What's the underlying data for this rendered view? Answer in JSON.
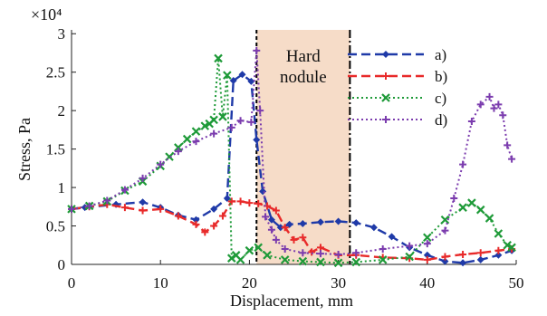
{
  "chart_data": {
    "type": "line",
    "xlabel": "Displacement, mm",
    "ylabel": "Stress, Pa",
    "y_multiplier": "×10⁴",
    "xlim": [
      0,
      50
    ],
    "ylim": [
      0,
      3.05
    ],
    "xticks": [
      "0",
      "10",
      "20",
      "30",
      "40",
      "50"
    ],
    "yticks": [
      "0",
      "0.5",
      "1",
      "1.5",
      "2",
      "2.5",
      "3"
    ],
    "xtick_values": [
      0,
      10,
      20,
      30,
      40,
      50
    ],
    "ytick_values": [
      0,
      0.5,
      1,
      1.5,
      2,
      2.5,
      3
    ],
    "grid": false,
    "legend_position": "top-right",
    "region": {
      "label_lines": [
        "Hard",
        "nodule"
      ],
      "x_start": 20.8,
      "x_end": 31.3,
      "color": "#f6dcc8"
    },
    "series": [
      {
        "name": "a)",
        "color": "#1f3aa8",
        "marker": "diamond",
        "dash": "10,5",
        "x": [
          0,
          1.5,
          5,
          8,
          10,
          12,
          14,
          16,
          17.5,
          18.2,
          19.2,
          20.2,
          20.8,
          21.5,
          22.5,
          23.5,
          24.5,
          26,
          28,
          30,
          32,
          34,
          36,
          38,
          40,
          42,
          44,
          46,
          48,
          49.5
        ],
        "y": [
          0.72,
          0.74,
          0.78,
          0.81,
          0.74,
          0.64,
          0.58,
          0.72,
          0.86,
          2.39,
          2.47,
          2.38,
          1.62,
          0.95,
          0.58,
          0.48,
          0.52,
          0.53,
          0.55,
          0.56,
          0.54,
          0.48,
          0.36,
          0.22,
          0.12,
          0.04,
          0.02,
          0.06,
          0.12,
          0.18
        ]
      },
      {
        "name": "b)",
        "color": "#e82a2a",
        "marker": "plus",
        "dash": "10,5",
        "x": [
          0,
          2,
          4,
          6,
          8,
          10,
          12,
          14,
          15,
          16,
          17,
          18,
          19,
          20,
          21,
          22,
          23,
          24,
          25,
          26,
          27,
          28,
          30,
          32,
          35,
          38,
          40,
          42,
          44,
          46,
          48,
          49.5
        ],
        "y": [
          0.72,
          0.75,
          0.78,
          0.74,
          0.7,
          0.72,
          0.63,
          0.52,
          0.42,
          0.5,
          0.63,
          0.82,
          0.82,
          0.8,
          0.79,
          0.76,
          0.7,
          0.48,
          0.32,
          0.35,
          0.16,
          0.22,
          0.12,
          0.12,
          0.09,
          0.08,
          0.06,
          0.1,
          0.13,
          0.15,
          0.18,
          0.2
        ]
      },
      {
        "name": "c)",
        "color": "#1e9a38",
        "marker": "x",
        "dash": "2,3",
        "x": [
          0,
          2,
          4,
          6,
          8,
          10,
          11,
          12,
          13,
          14,
          15,
          15.5,
          16,
          16.5,
          17,
          17.5,
          18,
          18.5,
          19,
          20,
          21,
          22,
          24,
          26,
          28,
          30,
          32,
          35,
          38,
          40,
          42,
          44,
          45,
          46,
          47,
          48,
          49,
          49.5
        ],
        "y": [
          0.72,
          0.76,
          0.82,
          0.96,
          1.08,
          1.28,
          1.4,
          1.52,
          1.63,
          1.73,
          1.8,
          1.83,
          1.88,
          2.68,
          1.92,
          2.46,
          0.08,
          0.12,
          0.06,
          0.18,
          0.22,
          0.12,
          0.06,
          0.04,
          0.03,
          0.02,
          0.03,
          0.06,
          0.1,
          0.35,
          0.58,
          0.74,
          0.8,
          0.71,
          0.6,
          0.4,
          0.25,
          0.22
        ]
      },
      {
        "name": "d)",
        "color": "#7b3cae",
        "marker": "plus",
        "dash": "2,3",
        "x": [
          0,
          2,
          4,
          6,
          8,
          10,
          12,
          14,
          16,
          18,
          19,
          20.2,
          20.8,
          21.2,
          21.8,
          22.5,
          23,
          24,
          26,
          28,
          30,
          32,
          35,
          38,
          40,
          42,
          43,
          44,
          45,
          46,
          47,
          47.5,
          48,
          48.5,
          49,
          49.5
        ],
        "y": [
          0.72,
          0.76,
          0.83,
          0.97,
          1.12,
          1.3,
          1.47,
          1.6,
          1.7,
          1.78,
          1.87,
          1.85,
          2.78,
          2.0,
          0.62,
          0.45,
          0.32,
          0.2,
          0.15,
          0.14,
          0.13,
          0.15,
          0.2,
          0.24,
          0.27,
          0.44,
          0.86,
          1.3,
          1.86,
          2.08,
          2.18,
          2.03,
          2.08,
          1.94,
          1.55,
          1.37
        ]
      }
    ]
  }
}
